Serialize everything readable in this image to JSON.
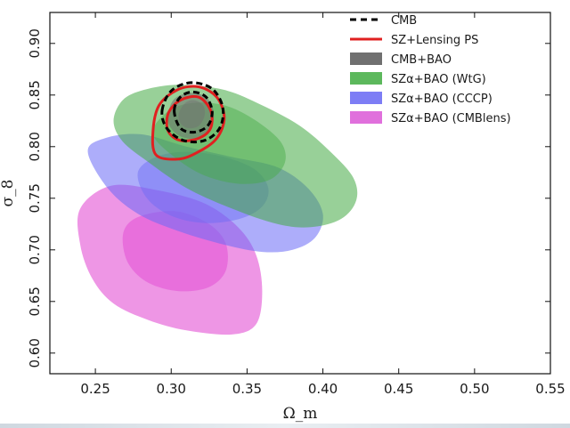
{
  "chart_data": {
    "type": "contour",
    "xlabel": "Ω_m",
    "ylabel": "σ_8",
    "xlim": [
      0.22,
      0.55
    ],
    "ylim": [
      0.58,
      0.93
    ],
    "xticks": [
      "0.25",
      "0.30",
      "0.35",
      "0.40",
      "0.45",
      "0.50",
      "0.55"
    ],
    "xtick_values": [
      0.25,
      0.3,
      0.35,
      0.4,
      0.45,
      0.5,
      0.55
    ],
    "yticks": [
      "0.60",
      "0.65",
      "0.70",
      "0.75",
      "0.80",
      "0.85",
      "0.90"
    ],
    "ytick_values": [
      0.6,
      0.65,
      0.7,
      0.75,
      0.8,
      0.85,
      0.9
    ],
    "legend_position": "top-right",
    "series": [
      {
        "name": "SZα+BAO (CMBlens)",
        "color": "#e040d0",
        "style": "filled",
        "outer": [
          [
            0.24,
            0.74
          ],
          [
            0.24,
            0.705
          ],
          [
            0.248,
            0.672
          ],
          [
            0.262,
            0.648
          ],
          [
            0.285,
            0.632
          ],
          [
            0.31,
            0.622
          ],
          [
            0.34,
            0.618
          ],
          [
            0.356,
            0.628
          ],
          [
            0.36,
            0.66
          ],
          [
            0.356,
            0.695
          ],
          [
            0.344,
            0.722
          ],
          [
            0.322,
            0.745
          ],
          [
            0.29,
            0.758
          ],
          [
            0.26,
            0.762
          ]
        ],
        "inner": [
          [
            0.268,
            0.71
          ],
          [
            0.272,
            0.686
          ],
          [
            0.285,
            0.668
          ],
          [
            0.305,
            0.66
          ],
          [
            0.325,
            0.664
          ],
          [
            0.336,
            0.68
          ],
          [
            0.336,
            0.706
          ],
          [
            0.325,
            0.725
          ],
          [
            0.305,
            0.737
          ],
          [
            0.285,
            0.735
          ],
          [
            0.272,
            0.726
          ]
        ]
      },
      {
        "name": "SZα+BAO (CCCP)",
        "color": "#6a6af5",
        "style": "filled",
        "outer": [
          [
            0.245,
            0.795
          ],
          [
            0.256,
            0.808
          ],
          [
            0.28,
            0.812
          ],
          [
            0.31,
            0.8
          ],
          [
            0.34,
            0.79
          ],
          [
            0.37,
            0.78
          ],
          [
            0.39,
            0.76
          ],
          [
            0.4,
            0.735
          ],
          [
            0.395,
            0.712
          ],
          [
            0.38,
            0.7
          ],
          [
            0.36,
            0.698
          ],
          [
            0.335,
            0.705
          ],
          [
            0.305,
            0.718
          ],
          [
            0.278,
            0.735
          ],
          [
            0.258,
            0.76
          ]
        ],
        "inner": [
          [
            0.278,
            0.775
          ],
          [
            0.29,
            0.79
          ],
          [
            0.31,
            0.795
          ],
          [
            0.335,
            0.79
          ],
          [
            0.355,
            0.778
          ],
          [
            0.364,
            0.76
          ],
          [
            0.36,
            0.742
          ],
          [
            0.345,
            0.73
          ],
          [
            0.322,
            0.726
          ],
          [
            0.3,
            0.733
          ],
          [
            0.284,
            0.75
          ]
        ]
      },
      {
        "name": "SZα+BAO (WtG)",
        "color": "#44aa44",
        "style": "filled",
        "outer": [
          [
            0.262,
            0.825
          ],
          [
            0.268,
            0.845
          ],
          [
            0.282,
            0.855
          ],
          [
            0.305,
            0.86
          ],
          [
            0.335,
            0.855
          ],
          [
            0.36,
            0.84
          ],
          [
            0.385,
            0.82
          ],
          [
            0.405,
            0.795
          ],
          [
            0.42,
            0.77
          ],
          [
            0.422,
            0.748
          ],
          [
            0.412,
            0.73
          ],
          [
            0.392,
            0.722
          ],
          [
            0.37,
            0.725
          ],
          [
            0.34,
            0.74
          ],
          [
            0.31,
            0.76
          ],
          [
            0.285,
            0.785
          ],
          [
            0.268,
            0.805
          ]
        ],
        "inner": [
          [
            0.288,
            0.812
          ],
          [
            0.296,
            0.832
          ],
          [
            0.312,
            0.842
          ],
          [
            0.335,
            0.84
          ],
          [
            0.355,
            0.826
          ],
          [
            0.372,
            0.805
          ],
          [
            0.375,
            0.785
          ],
          [
            0.365,
            0.768
          ],
          [
            0.345,
            0.764
          ],
          [
            0.322,
            0.772
          ],
          [
            0.302,
            0.79
          ]
        ]
      },
      {
        "name": "CMB+BAO",
        "color": "#707070",
        "style": "filled",
        "outer": [
          [
            0.298,
            0.832
          ],
          [
            0.302,
            0.846
          ],
          [
            0.312,
            0.852
          ],
          [
            0.323,
            0.848
          ],
          [
            0.328,
            0.834
          ],
          [
            0.326,
            0.817
          ],
          [
            0.317,
            0.808
          ],
          [
            0.306,
            0.81
          ],
          [
            0.299,
            0.82
          ]
        ],
        "inner": [
          [
            0.305,
            0.832
          ],
          [
            0.309,
            0.842
          ],
          [
            0.315,
            0.845
          ],
          [
            0.321,
            0.84
          ],
          [
            0.322,
            0.83
          ],
          [
            0.318,
            0.82
          ],
          [
            0.311,
            0.818
          ],
          [
            0.306,
            0.823
          ]
        ]
      },
      {
        "name": "SZ+Lensing PS",
        "color": "#e02020",
        "style": "line",
        "outer": [
          [
            0.29,
            0.792
          ],
          [
            0.288,
            0.815
          ],
          [
            0.292,
            0.84
          ],
          [
            0.304,
            0.855
          ],
          [
            0.318,
            0.858
          ],
          [
            0.33,
            0.848
          ],
          [
            0.335,
            0.828
          ],
          [
            0.33,
            0.808
          ],
          [
            0.318,
            0.795
          ],
          [
            0.305,
            0.788
          ]
        ],
        "inner": [
          [
            0.298,
            0.815
          ],
          [
            0.298,
            0.832
          ],
          [
            0.306,
            0.845
          ],
          [
            0.318,
            0.848
          ],
          [
            0.326,
            0.835
          ],
          [
            0.326,
            0.818
          ],
          [
            0.318,
            0.808
          ],
          [
            0.306,
            0.806
          ]
        ]
      },
      {
        "name": "CMB",
        "color": "#000000",
        "style": "dashed",
        "outer": [
          [
            0.294,
            0.835
          ],
          [
            0.3,
            0.854
          ],
          [
            0.313,
            0.862
          ],
          [
            0.327,
            0.856
          ],
          [
            0.334,
            0.838
          ],
          [
            0.332,
            0.818
          ],
          [
            0.322,
            0.806
          ],
          [
            0.308,
            0.806
          ],
          [
            0.297,
            0.818
          ]
        ],
        "inner": [
          [
            0.302,
            0.835
          ],
          [
            0.306,
            0.848
          ],
          [
            0.314,
            0.853
          ],
          [
            0.323,
            0.848
          ],
          [
            0.327,
            0.834
          ],
          [
            0.324,
            0.82
          ],
          [
            0.315,
            0.814
          ],
          [
            0.306,
            0.818
          ]
        ]
      }
    ],
    "legend": [
      {
        "label": "CMB",
        "kind": "dashed",
        "color": "#000000"
      },
      {
        "label": "SZ+Lensing PS",
        "kind": "line",
        "color": "#e02020"
      },
      {
        "label": "CMB+BAO",
        "kind": "box",
        "color": "#707070"
      },
      {
        "label": "SZα+BAO (WtG)",
        "kind": "box",
        "color": "#5cb85c"
      },
      {
        "label": "SZα+BAO (CCCP)",
        "kind": "box",
        "color": "#7d7df5"
      },
      {
        "label": "SZα+BAO (CMBlens)",
        "kind": "box",
        "color": "#e070dc"
      }
    ]
  }
}
